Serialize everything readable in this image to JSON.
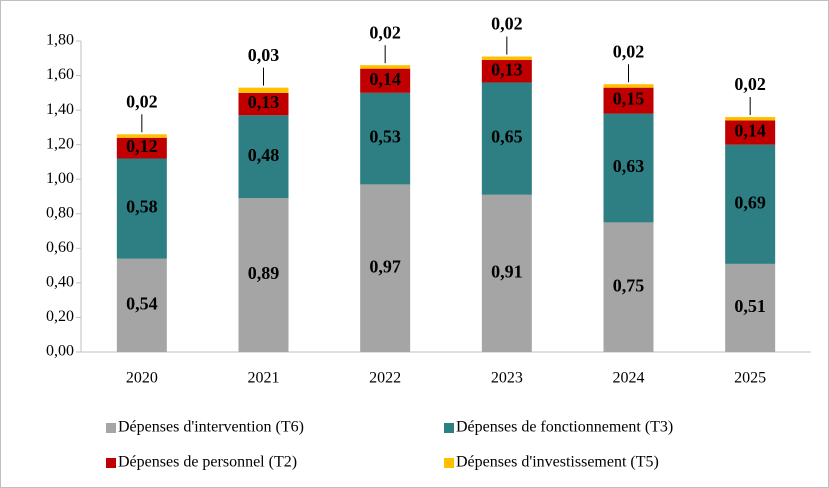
{
  "chart_data": {
    "type": "stacked_bar",
    "categories": [
      "2020",
      "2021",
      "2022",
      "2023",
      "2024",
      "2025"
    ],
    "series": [
      {
        "name": "Dépenses d'intervention (T6)",
        "color": "#a5a5a5",
        "values": [
          0.54,
          0.89,
          0.97,
          0.91,
          0.75,
          0.51
        ],
        "value_labels": [
          "0,54",
          "0,89",
          "0,97",
          "0,91",
          "0,75",
          "0,51"
        ]
      },
      {
        "name": "Dépenses de fonctionnement (T3)",
        "color": "#2e7f84",
        "values": [
          0.58,
          0.48,
          0.53,
          0.65,
          0.63,
          0.69
        ],
        "value_labels": [
          "0,58",
          "0,48",
          "0,53",
          "0,65",
          "0,63",
          "0,69"
        ]
      },
      {
        "name": "Dépenses de personnel (T2)",
        "color": "#c00000",
        "values": [
          0.12,
          0.13,
          0.14,
          0.13,
          0.15,
          0.14
        ],
        "value_labels": [
          "0,12",
          "0,13",
          "0,14",
          "0,13",
          "0,15",
          "0,14"
        ]
      },
      {
        "name": "Dépenses d'investissement (T5)",
        "color": "#ffc000",
        "values": [
          0.02,
          0.03,
          0.02,
          0.02,
          0.02,
          0.02
        ],
        "value_labels": [
          "0,02",
          "0,03",
          "0,02",
          "0,02",
          "0,02",
          "0,02"
        ]
      }
    ],
    "ylim": [
      0,
      1.8
    ],
    "yticks": [
      {
        "value": 0,
        "label": "0,00"
      },
      {
        "value": 0.2,
        "label": "0,20"
      },
      {
        "value": 0.4,
        "label": "0,40"
      },
      {
        "value": 0.6,
        "label": "0,60"
      },
      {
        "value": 0.8,
        "label": "0,80"
      },
      {
        "value": 1.0,
        "label": "1,00"
      },
      {
        "value": 1.2,
        "label": "1,20"
      },
      {
        "value": 1.4,
        "label": "1,40"
      },
      {
        "value": 1.6,
        "label": "1,60"
      },
      {
        "value": 1.8,
        "label": "1,80"
      }
    ],
    "grid": false,
    "legend": "bottom"
  }
}
